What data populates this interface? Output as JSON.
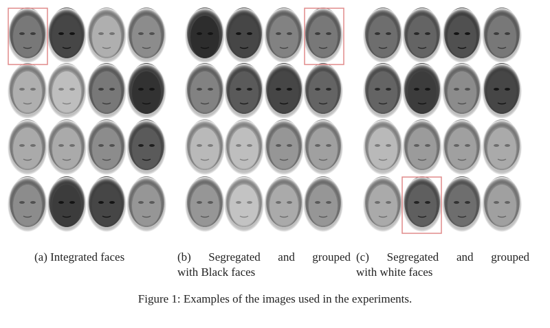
{
  "figure": {
    "subfigures": [
      {
        "caption_lines": [
          "(a) Integrated faces"
        ]
      },
      {
        "caption_lines": [
          "(b) Segregated and grouped",
          "with Black faces"
        ]
      },
      {
        "caption_lines": [
          "(c) Segregated and grouped",
          "with white faces"
        ]
      }
    ],
    "caption": "Figure 1: Examples of the images used in the experiments."
  }
}
